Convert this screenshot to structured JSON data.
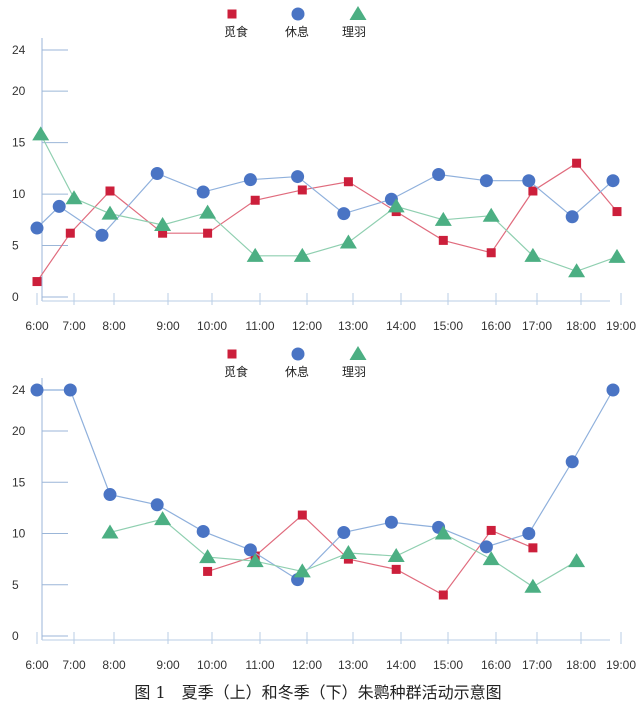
{
  "caption": "图 1　夏季（上）和冬季（下）朱鹮种群活动示意图",
  "legend": {
    "series": [
      "觅食",
      "休息",
      "理羽"
    ],
    "colors": {
      "觅食": "#cc1f3b",
      "休息": "#4a74c4",
      "理羽": "#4caf83"
    },
    "line_colors": {
      "觅食": "#e06b7d",
      "休息": "#8fb0dc",
      "理羽": "#8fcfb0"
    },
    "markers": {
      "觅食": "square",
      "休息": "circle",
      "理羽": "triangle"
    }
  },
  "chart_data": [
    {
      "type": "line",
      "title": "夏季",
      "categories": [
        "6:00",
        "7:00",
        "8:00",
        "9:00",
        "10:00",
        "11:00",
        "12:00",
        "13:00",
        "14:00",
        "15:00",
        "16:00",
        "17:00",
        "18:00",
        "19:00"
      ],
      "yticks": [
        0,
        5,
        10,
        15,
        20,
        24
      ],
      "ylim": [
        0,
        24
      ],
      "series": [
        {
          "name": "觅食",
          "points": [
            [
              6,
              1.5
            ],
            [
              6.9,
              6.2
            ],
            [
              7.9,
              10.3
            ],
            [
              8.9,
              6.2
            ],
            [
              9.9,
              6.2
            ],
            [
              10.9,
              9.4
            ],
            [
              11.9,
              10.4
            ],
            [
              12.9,
              11.2
            ],
            [
              13.9,
              8.3
            ],
            [
              14.9,
              5.5
            ],
            [
              15.9,
              4.3
            ],
            [
              16.9,
              10.3
            ],
            [
              17.9,
              13
            ],
            [
              18.9,
              8.3
            ]
          ]
        },
        {
          "name": "休息",
          "points": [
            [
              6,
              6.7
            ],
            [
              6.6,
              8.8
            ],
            [
              7.7,
              6.0
            ],
            [
              8.8,
              12
            ],
            [
              9.8,
              10.2
            ],
            [
              10.8,
              11.4
            ],
            [
              11.8,
              11.7
            ],
            [
              12.8,
              8.1
            ],
            [
              13.8,
              9.5
            ],
            [
              14.8,
              11.9
            ],
            [
              15.8,
              11.3
            ],
            [
              16.8,
              11.3
            ],
            [
              17.8,
              7.8
            ],
            [
              18.8,
              11.3
            ]
          ]
        },
        {
          "name": "理羽",
          "points": [
            [
              6.1,
              15.8
            ],
            [
              7,
              9.6
            ],
            [
              7.9,
              8.1
            ],
            [
              8.9,
              7.0
            ],
            [
              9.9,
              8.2
            ],
            [
              10.9,
              4.0
            ],
            [
              11.9,
              4.0
            ],
            [
              12.9,
              5.3
            ],
            [
              13.9,
              8.8
            ],
            [
              14.9,
              7.5
            ],
            [
              15.9,
              7.9
            ],
            [
              16.9,
              4.0
            ],
            [
              17.9,
              2.5
            ],
            [
              18.9,
              3.9
            ]
          ]
        }
      ]
    },
    {
      "type": "line",
      "title": "冬季",
      "categories": [
        "6:00",
        "7:00",
        "8:00",
        "9:00",
        "10:00",
        "11:00",
        "12:00",
        "13:00",
        "14:00",
        "15:00",
        "16:00",
        "17:00",
        "18:00",
        "19:00"
      ],
      "yticks": [
        0,
        5,
        10,
        15,
        20,
        24
      ],
      "ylim": [
        0,
        24
      ],
      "series": [
        {
          "name": "觅食",
          "points": [
            [
              9.9,
              6.3
            ],
            [
              10.9,
              7.8
            ],
            [
              11.9,
              11.8
            ],
            [
              12.9,
              7.5
            ],
            [
              13.9,
              6.5
            ],
            [
              14.9,
              4.0
            ],
            [
              15.9,
              10.3
            ],
            [
              16.9,
              8.6
            ]
          ]
        },
        {
          "name": "休息",
          "points": [
            [
              6,
              24
            ],
            [
              6.9,
              24
            ],
            [
              7.9,
              13.8
            ],
            [
              8.8,
              12.8
            ],
            [
              9.8,
              10.2
            ],
            [
              10.8,
              8.4
            ],
            [
              11.8,
              5.5
            ],
            [
              12.8,
              10.1
            ],
            [
              13.8,
              11.1
            ],
            [
              14.8,
              10.6
            ],
            [
              15.8,
              8.7
            ],
            [
              16.8,
              10.0
            ],
            [
              17.8,
              17
            ],
            [
              18.8,
              24
            ]
          ]
        },
        {
          "name": "理羽",
          "points": [
            [
              7.9,
              10.1
            ],
            [
              8.9,
              11.4
            ],
            [
              9.9,
              7.7
            ],
            [
              10.9,
              7.3
            ],
            [
              11.9,
              6.3
            ],
            [
              12.9,
              8.1
            ],
            [
              13.9,
              7.8
            ],
            [
              14.9,
              10.0
            ],
            [
              15.9,
              7.5
            ],
            [
              16.9,
              4.8
            ],
            [
              17.9,
              7.3
            ]
          ]
        }
      ]
    }
  ]
}
